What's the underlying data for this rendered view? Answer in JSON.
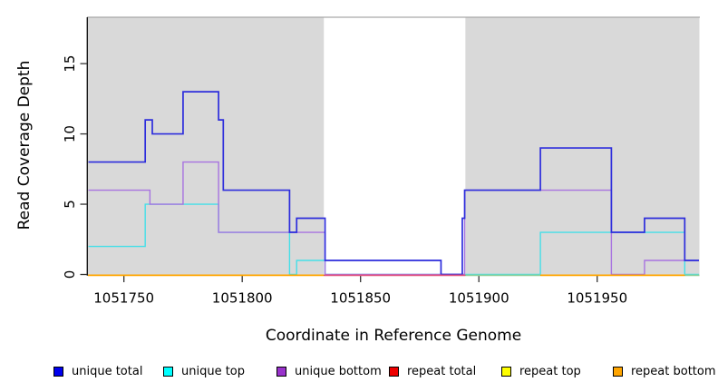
{
  "chart_data": {
    "type": "line",
    "subtype": "step-coverage",
    "title": "",
    "xlabel": "Coordinate in Reference Genome",
    "ylabel": "Read Coverage Depth",
    "xlim": [
      1051734.8,
      1051993.2
    ],
    "ylim": [
      0,
      18.3
    ],
    "xticks": [
      1051750,
      1051800,
      1051850,
      1051900,
      1051950
    ],
    "yticks": [
      0,
      5,
      10,
      15
    ],
    "grid": false,
    "legend_position": "bottom",
    "plot_bg": "#ffffff",
    "shaded_band_color": "#d9d9d9",
    "shaded_bands": [
      {
        "from": 1051734.8,
        "to": 1051834.5
      },
      {
        "from": 1051894.3,
        "to": 1051993.2
      }
    ],
    "unshaded_gap": {
      "from": 1051834.5,
      "to": 1051894.3
    },
    "series": [
      {
        "name": "unique total",
        "line_color": "#2d2ddc",
        "swatch": "#0000ee",
        "steps": [
          {
            "from": 1051735,
            "to": 1051759,
            "v": 8
          },
          {
            "from": 1051759,
            "to": 1051762,
            "v": 11
          },
          {
            "from": 1051762,
            "to": 1051775,
            "v": 10
          },
          {
            "from": 1051775,
            "to": 1051790,
            "v": 13
          },
          {
            "from": 1051790,
            "to": 1051792,
            "v": 11
          },
          {
            "from": 1051792,
            "to": 1051820,
            "v": 6
          },
          {
            "from": 1051820,
            "to": 1051823,
            "v": 3
          },
          {
            "from": 1051823,
            "to": 1051835,
            "v": 4
          },
          {
            "from": 1051835,
            "to": 1051884,
            "v": 1
          },
          {
            "from": 1051884,
            "to": 1051893,
            "v": 0
          },
          {
            "from": 1051893,
            "to": 1051894,
            "v": 4
          },
          {
            "from": 1051894,
            "to": 1051926,
            "v": 6
          },
          {
            "from": 1051926,
            "to": 1051956,
            "v": 9
          },
          {
            "from": 1051956,
            "to": 1051970,
            "v": 3
          },
          {
            "from": 1051970,
            "to": 1051987,
            "v": 4
          },
          {
            "from": 1051987,
            "to": 1051993,
            "v": 1
          }
        ]
      },
      {
        "name": "unique top",
        "line_color": "#45dfe8",
        "swatch": "#00ffff",
        "steps": [
          {
            "from": 1051735,
            "to": 1051759,
            "v": 2
          },
          {
            "from": 1051759,
            "to": 1051790,
            "v": 5
          },
          {
            "from": 1051790,
            "to": 1051820,
            "v": 3
          },
          {
            "from": 1051820,
            "to": 1051823,
            "v": 0
          },
          {
            "from": 1051823,
            "to": 1051835,
            "v": 1
          },
          {
            "from": 1051835,
            "to": 1051926,
            "v": 0
          },
          {
            "from": 1051926,
            "to": 1051987,
            "v": 3
          },
          {
            "from": 1051987,
            "to": 1051993,
            "v": 0
          }
        ]
      },
      {
        "name": "unique bottom",
        "line_color": "#a873e0",
        "swatch": "#9932cc",
        "steps": [
          {
            "from": 1051735,
            "to": 1051761,
            "v": 6
          },
          {
            "from": 1051761,
            "to": 1051775,
            "v": 5
          },
          {
            "from": 1051775,
            "to": 1051790,
            "v": 8
          },
          {
            "from": 1051790,
            "to": 1051835,
            "v": 3
          },
          {
            "from": 1051835,
            "to": 1051894,
            "v": 0
          },
          {
            "from": 1051894,
            "to": 1051956,
            "v": 6
          },
          {
            "from": 1051956,
            "to": 1051970,
            "v": 0
          },
          {
            "from": 1051970,
            "to": 1051993,
            "v": 1
          }
        ]
      },
      {
        "name": "repeat total",
        "line_color": "#dd2222",
        "swatch": "#ee0000",
        "steps": [
          {
            "from": 1051735,
            "to": 1051993,
            "v": 0
          }
        ]
      },
      {
        "name": "repeat top",
        "line_color": "#eeee22",
        "swatch": "#ffff00",
        "steps": [
          {
            "from": 1051735,
            "to": 1051993,
            "v": 0
          }
        ]
      },
      {
        "name": "repeat bottom",
        "line_color": "#ffa500",
        "swatch": "#ffa500",
        "steps": [
          {
            "from": 1051735,
            "to": 1051993,
            "v": 0
          }
        ]
      }
    ],
    "zero_line_segments": [
      {
        "from": 1051734.8,
        "to": 1051834.5,
        "color": "#ffa500"
      },
      {
        "from": 1051834.5,
        "to": 1051894.3,
        "color": "#e0557f"
      },
      {
        "from": 1051894.3,
        "to": 1051926,
        "color": "#8fcf9a"
      },
      {
        "from": 1051926,
        "to": 1051987,
        "color": "#ffa500"
      },
      {
        "from": 1051987,
        "to": 1051993.2,
        "color": "#8fcf9a"
      }
    ]
  },
  "legend": {
    "items": [
      {
        "label": "unique total",
        "swatch": "#0000ee"
      },
      {
        "label": "unique top",
        "swatch": "#00ffff"
      },
      {
        "label": "unique bottom",
        "swatch": "#9932cc"
      },
      {
        "label": "repeat total",
        "swatch": "#ee0000"
      },
      {
        "label": "repeat top",
        "swatch": "#ffff00"
      },
      {
        "label": "repeat bottom",
        "swatch": "#ffa500"
      }
    ]
  }
}
